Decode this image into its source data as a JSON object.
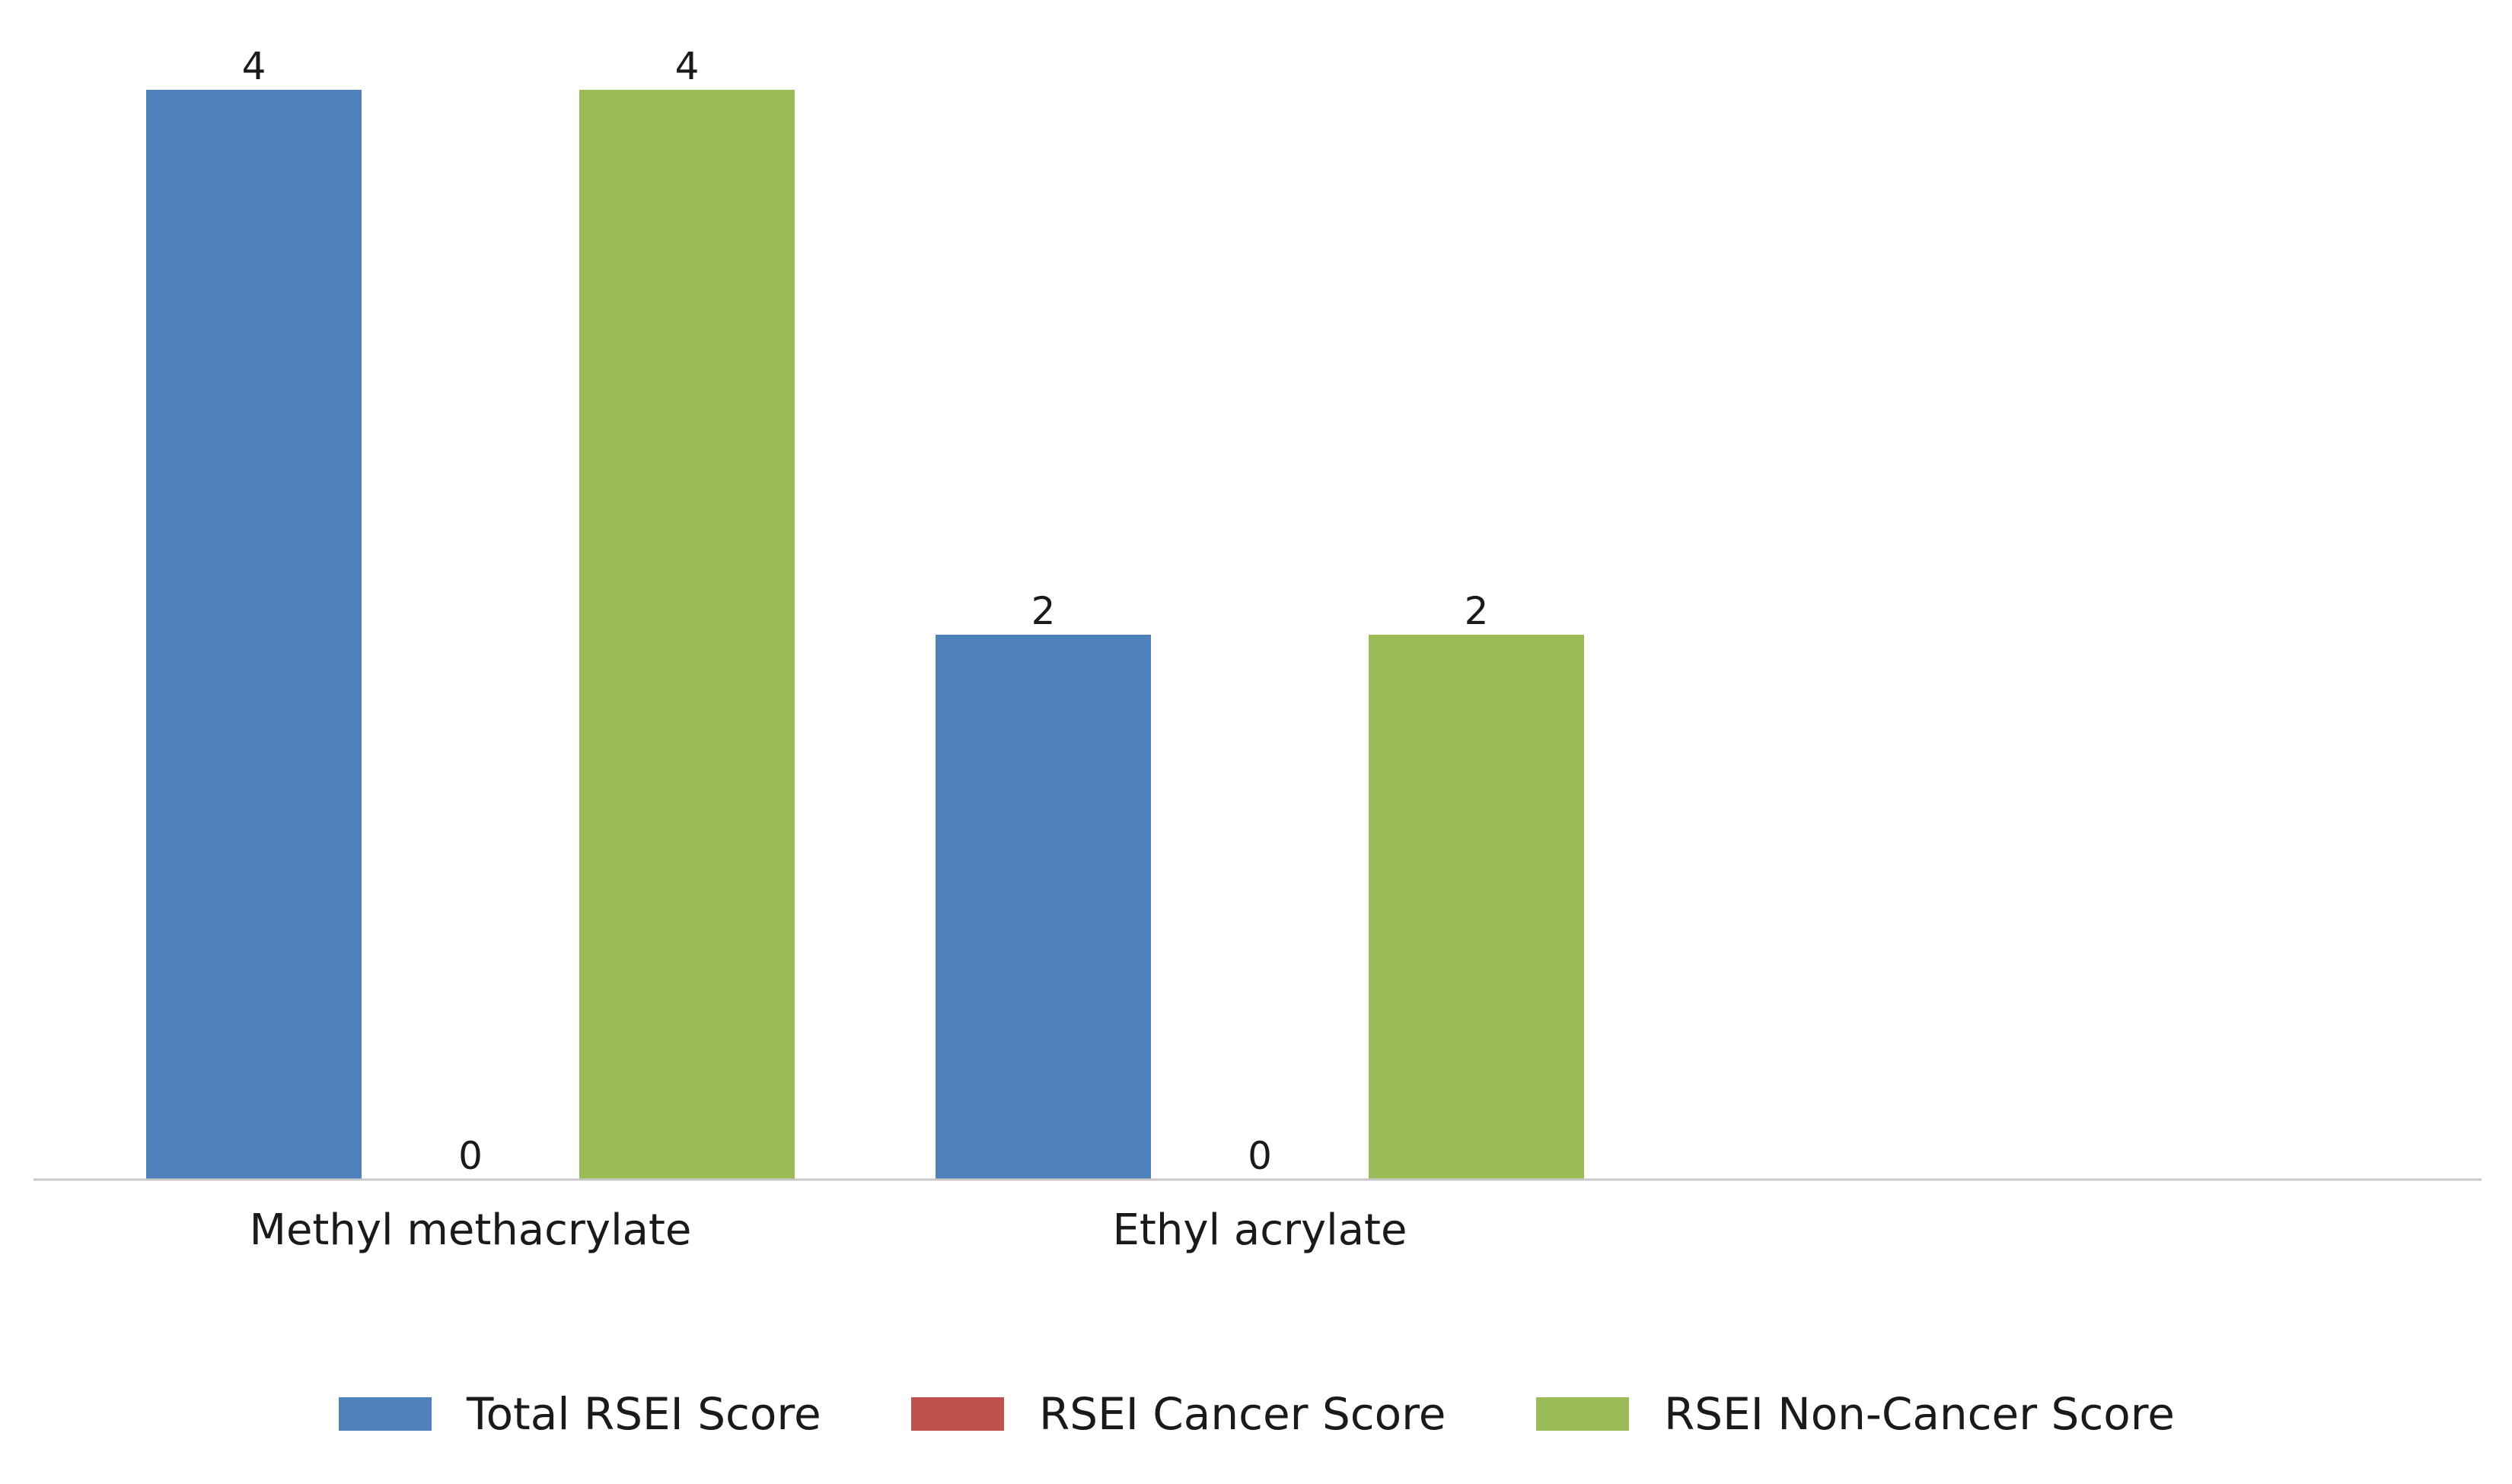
{
  "chart_data": {
    "type": "bar",
    "title": "",
    "xlabel": "",
    "ylabel": "",
    "ylim": [
      0,
      4
    ],
    "grid": false,
    "legend_position": "bottom",
    "categories": [
      "Methyl methacrylate",
      "Ethyl acrylate",
      "",
      ""
    ],
    "series": [
      {
        "name": "Total RSEI Score",
        "color": "#4f81bd",
        "values": [
          4,
          2,
          null,
          null
        ],
        "labels": [
          "4",
          "2",
          "",
          ""
        ]
      },
      {
        "name": "RSEI Cancer Score",
        "color": "#c0504d",
        "values": [
          0,
          0,
          null,
          null
        ],
        "labels": [
          "0",
          "0",
          "",
          ""
        ]
      },
      {
        "name": "RSEI Non-Cancer Score",
        "color": "#9bbb59",
        "values": [
          4,
          2,
          null,
          null
        ],
        "labels": [
          "4",
          "2",
          "",
          ""
        ]
      }
    ]
  }
}
